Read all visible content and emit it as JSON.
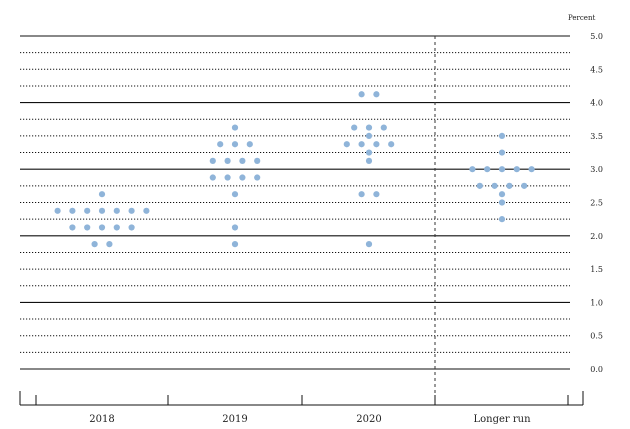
{
  "chart_data": {
    "type": "scatter",
    "title": "",
    "xlabel": "",
    "ylabel": "Percent",
    "ylim": [
      0,
      5
    ],
    "yticks": [
      0.0,
      0.5,
      1.0,
      1.5,
      2.0,
      2.5,
      3.0,
      3.5,
      4.0,
      4.5,
      5.0
    ],
    "ytick_labels": [
      "0.0",
      "0.5",
      "1.0",
      "1.5",
      "2.0",
      "2.5",
      "3.0",
      "3.5",
      "4.0",
      "4.5",
      "5.0"
    ],
    "categories": [
      "2018",
      "2019",
      "2020",
      "Longer run"
    ],
    "grid": "solid lines at whole percents, dotted lines at every 0.25",
    "separator": "dashed vertical line before Longer run",
    "dot_color": "#8fb4d9",
    "series": [
      {
        "category": "2018",
        "points": [
          {
            "y": 2.625,
            "count": 1
          },
          {
            "y": 2.375,
            "count": 7
          },
          {
            "y": 2.125,
            "count": 5
          },
          {
            "y": 1.875,
            "count": 2
          }
        ]
      },
      {
        "category": "2019",
        "points": [
          {
            "y": 3.625,
            "count": 1
          },
          {
            "y": 3.375,
            "count": 3
          },
          {
            "y": 3.125,
            "count": 4
          },
          {
            "y": 2.875,
            "count": 4
          },
          {
            "y": 2.625,
            "count": 1
          },
          {
            "y": 2.125,
            "count": 1
          },
          {
            "y": 1.875,
            "count": 1
          }
        ]
      },
      {
        "category": "2020",
        "points": [
          {
            "y": 4.125,
            "count": 2
          },
          {
            "y": 3.625,
            "count": 3
          },
          {
            "y": 3.5,
            "count": 1
          },
          {
            "y": 3.375,
            "count": 4
          },
          {
            "y": 3.25,
            "count": 1
          },
          {
            "y": 3.125,
            "count": 1
          },
          {
            "y": 2.625,
            "count": 2
          },
          {
            "y": 1.875,
            "count": 1
          }
        ]
      },
      {
        "category": "Longer run",
        "points": [
          {
            "y": 3.5,
            "count": 1
          },
          {
            "y": 3.25,
            "count": 1
          },
          {
            "y": 3.0,
            "count": 5
          },
          {
            "y": 2.75,
            "count": 4
          },
          {
            "y": 2.625,
            "count": 1
          },
          {
            "y": 2.5,
            "count": 1
          },
          {
            "y": 2.25,
            "count": 1
          }
        ]
      }
    ]
  }
}
